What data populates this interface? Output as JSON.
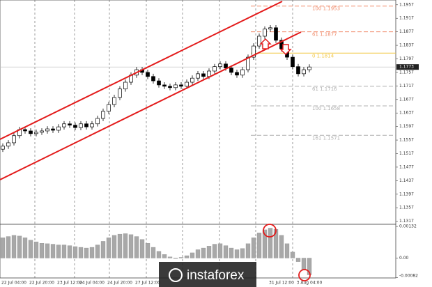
{
  "chart_data": {
    "type": "candlestick",
    "categories": [
      null,
      null,
      "22 Jul 04:00",
      null,
      null,
      null,
      null,
      "22 Jul 20:00",
      null,
      null,
      null,
      null,
      "23 Jul 12:00",
      null,
      null,
      null,
      "24 Jul 04:00",
      null,
      null,
      null,
      null,
      "24 Jul 20:00",
      null,
      null,
      null,
      null,
      "27 Jul 12:00",
      null,
      null,
      null,
      null,
      null,
      null,
      null,
      null,
      null,
      null,
      null,
      null,
      null,
      null,
      null,
      null,
      null,
      null,
      null,
      null,
      null,
      null,
      null,
      "31 Jul 12:00",
      null,
      null,
      null,
      null,
      "3 Aug 04:00"
    ],
    "open": [
      1.153,
      1.1539,
      1.1549,
      1.157,
      1.1588,
      1.1584,
      1.1576,
      1.158,
      1.1584,
      1.159,
      1.1586,
      1.1596,
      1.1605,
      1.1601,
      1.1594,
      1.1605,
      1.1596,
      1.1605,
      1.1621,
      1.1642,
      1.1662,
      1.1683,
      1.1708,
      1.1728,
      1.1749,
      1.1765,
      1.1757,
      1.1745,
      1.1732,
      1.172,
      1.1716,
      1.1712,
      1.172,
      1.1716,
      1.1728,
      1.174,
      1.1753,
      1.1745,
      1.1761,
      1.1774,
      1.1782,
      1.177,
      1.1757,
      1.1749,
      1.1765,
      1.1802,
      1.1835,
      1.1864,
      1.1885,
      1.1889,
      1.1852,
      1.1827,
      1.1802,
      1.1774,
      1.1753,
      1.1765
    ],
    "high": [
      1.1547,
      1.1557,
      1.1578,
      1.1596,
      1.1596,
      1.1592,
      1.1588,
      1.1592,
      1.1598,
      1.1598,
      1.1604,
      1.1613,
      1.1613,
      1.1609,
      1.1613,
      1.1613,
      1.1613,
      1.1629,
      1.165,
      1.167,
      1.1691,
      1.1716,
      1.1736,
      1.1757,
      1.1773,
      1.1773,
      1.1765,
      1.1753,
      1.174,
      1.1728,
      1.1724,
      1.1728,
      1.1728,
      1.1736,
      1.1748,
      1.1761,
      1.1761,
      1.1769,
      1.1782,
      1.179,
      1.179,
      1.1778,
      1.1765,
      1.1773,
      1.181,
      1.1843,
      1.1872,
      1.1893,
      1.1897,
      1.1897,
      1.186,
      1.1835,
      1.181,
      1.1782,
      1.1773,
      1.1781
    ],
    "low": [
      1.1522,
      1.1531,
      1.1541,
      1.1562,
      1.1576,
      1.1568,
      1.1568,
      1.1572,
      1.1576,
      1.1578,
      1.1578,
      1.1588,
      1.1593,
      1.1586,
      1.1586,
      1.1588,
      1.1588,
      1.1597,
      1.1613,
      1.1634,
      1.1654,
      1.1675,
      1.17,
      1.172,
      1.1741,
      1.1749,
      1.1737,
      1.1724,
      1.1712,
      1.1708,
      1.1704,
      1.1704,
      1.1708,
      1.1708,
      1.172,
      1.1732,
      1.1737,
      1.1737,
      1.1753,
      1.1766,
      1.1762,
      1.1749,
      1.1741,
      1.1741,
      1.1757,
      1.1794,
      1.1827,
      1.1856,
      1.1877,
      1.1844,
      1.1819,
      1.1794,
      1.1766,
      1.1745,
      1.1745,
      1.1757
    ],
    "close": [
      1.1539,
      1.1549,
      1.157,
      1.1588,
      1.1584,
      1.1576,
      1.158,
      1.1584,
      1.159,
      1.1586,
      1.1596,
      1.1605,
      1.1601,
      1.1594,
      1.1605,
      1.1596,
      1.1605,
      1.1621,
      1.1642,
      1.1662,
      1.1683,
      1.1708,
      1.1728,
      1.1749,
      1.1765,
      1.1757,
      1.1745,
      1.1732,
      1.172,
      1.1716,
      1.1712,
      1.172,
      1.1716,
      1.1728,
      1.174,
      1.1753,
      1.1745,
      1.1761,
      1.1774,
      1.1782,
      1.177,
      1.1757,
      1.1749,
      1.1765,
      1.1802,
      1.1835,
      1.1864,
      1.1885,
      1.1889,
      1.1852,
      1.1827,
      1.1802,
      1.1774,
      1.1753,
      1.1765,
      1.1773
    ],
    "ylim": [
      1.1308,
      1.1971
    ],
    "yticks": [
      1.1317,
      1.1357,
      1.1397,
      1.1437,
      1.1477,
      1.1517,
      1.1557,
      1.1597,
      1.1637,
      1.1677,
      1.1717,
      1.1757,
      1.1797,
      1.1837,
      1.1877,
      1.1917,
      1.1957
    ],
    "last_price": 1.1773,
    "fib_levels": [
      {
        "value": 1.1953,
        "label": "100 1.1953",
        "color": "#f08c6c"
      },
      {
        "value": 1.1877,
        "label": "61 1.1877",
        "color": "#f08c6c"
      },
      {
        "value": 1.1814,
        "label": "0 1.1814",
        "color": "#f2c744"
      },
      {
        "value": 1.1716,
        "label": "61 1.1716",
        "color": "#b0b0b0"
      },
      {
        "value": 1.1658,
        "label": "100 1.1658",
        "color": "#b0b0b0"
      },
      {
        "value": 1.1571,
        "label": "161 1.1571",
        "color": "#b0b0b0"
      }
    ],
    "oscillator": {
      "type": "histogram",
      "color": "#a8a8a8",
      "values": [
        0.00085,
        0.0009,
        0.00095,
        0.00092,
        0.00085,
        0.00075,
        0.00068,
        0.00062,
        0.0006,
        0.00058,
        0.00055,
        0.00055,
        0.00052,
        0.00048,
        0.00045,
        0.00042,
        0.00045,
        0.00055,
        0.0007,
        0.00085,
        0.00095,
        0.001,
        0.00102,
        0.00098,
        0.0009,
        0.00078,
        0.00062,
        0.00045,
        0.00028,
        0.00015,
        5e-05,
        -2e-05,
        3e-05,
        0.0001,
        0.00022,
        0.00035,
        0.00042,
        0.0005,
        0.00058,
        0.0006,
        0.00052,
        0.00042,
        0.00035,
        0.0004,
        0.0006,
        0.00085,
        0.00105,
        0.00118,
        0.00125,
        0.0012,
        0.00095,
        0.0006,
        0.00025,
        -0.00015,
        -0.0005,
        -0.0007
      ],
      "ylim": [
        -0.00083,
        0.00141
      ],
      "yticks": [
        -0.00082,
        {
          "value": 0,
          "label": "0.00"
        },
        0.00132
      ]
    },
    "watermark": "instaforex"
  }
}
